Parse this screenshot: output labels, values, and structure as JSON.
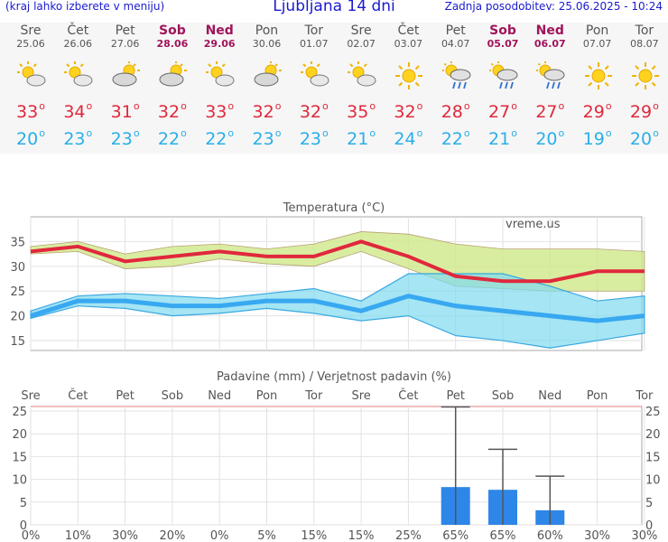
{
  "header": {
    "menu_hint": "(kraj lahko izberete v meniju)",
    "title": "Ljubljana 14 dni",
    "updated": "Zadnja posodobitev: 25.06.2025 - 10:24"
  },
  "days": [
    {
      "name": "Sre",
      "date": "25.06",
      "weekend": false,
      "icon": "sun-cloud-icon",
      "tmax": "33",
      "tmin": "20",
      "precip_prob": "0%"
    },
    {
      "name": "Čet",
      "date": "26.06",
      "weekend": false,
      "icon": "sun-cloud-icon",
      "tmax": "34",
      "tmin": "23",
      "precip_prob": "10%"
    },
    {
      "name": "Pet",
      "date": "27.06",
      "weekend": false,
      "icon": "cloud-sun-icon",
      "tmax": "31",
      "tmin": "23",
      "precip_prob": "30%"
    },
    {
      "name": "Sob",
      "date": "28.06",
      "weekend": true,
      "icon": "cloud-sun-icon",
      "tmax": "32",
      "tmin": "22",
      "precip_prob": "20%"
    },
    {
      "name": "Ned",
      "date": "29.06",
      "weekend": true,
      "icon": "sun-cloud-icon",
      "tmax": "33",
      "tmin": "22",
      "precip_prob": "0%"
    },
    {
      "name": "Pon",
      "date": "30.06",
      "weekend": false,
      "icon": "cloud-sun-icon",
      "tmax": "32",
      "tmin": "23",
      "precip_prob": "5%"
    },
    {
      "name": "Tor",
      "date": "01.07",
      "weekend": false,
      "icon": "sun-cloud-icon",
      "tmax": "32",
      "tmin": "23",
      "precip_prob": "15%"
    },
    {
      "name": "Sre",
      "date": "02.07",
      "weekend": false,
      "icon": "sun-cloud-icon",
      "tmax": "35",
      "tmin": "21",
      "precip_prob": "15%"
    },
    {
      "name": "Čet",
      "date": "03.07",
      "weekend": false,
      "icon": "sun-icon",
      "tmax": "32",
      "tmin": "24",
      "precip_prob": "25%"
    },
    {
      "name": "Pet",
      "date": "04.07",
      "weekend": false,
      "icon": "sun-rain-icon",
      "tmax": "28",
      "tmin": "22",
      "precip_prob": "65%"
    },
    {
      "name": "Sob",
      "date": "05.07",
      "weekend": true,
      "icon": "sun-rain-icon",
      "tmax": "27",
      "tmin": "21",
      "precip_prob": "65%"
    },
    {
      "name": "Ned",
      "date": "06.07",
      "weekend": true,
      "icon": "sun-rain-icon",
      "tmax": "27",
      "tmin": "20",
      "precip_prob": "60%"
    },
    {
      "name": "Pon",
      "date": "07.07",
      "weekend": false,
      "icon": "sun-icon",
      "tmax": "29",
      "tmin": "19",
      "precip_prob": "30%"
    },
    {
      "name": "Tor",
      "date": "08.07",
      "weekend": false,
      "icon": "sun-icon",
      "tmax": "29",
      "tmin": "20",
      "precip_prob": "30%"
    }
  ],
  "colors": {
    "tmax": "#e0283c",
    "tmin": "#2aaee8",
    "weekend": "#a0145a",
    "bar": "#2e86e8",
    "prob_high": "#1a1ad0",
    "prob_low": "#8ad8f5"
  },
  "chart_data": [
    {
      "type": "line",
      "title": "Temperatura (°C)",
      "watermark": "vreme.us",
      "ylim": [
        13,
        40
      ],
      "yticks": [
        15,
        20,
        25,
        30,
        35
      ],
      "series": [
        {
          "name": "tmax",
          "values": [
            33,
            34,
            31,
            32,
            33,
            32,
            32,
            35,
            32,
            28,
            27,
            27,
            29,
            29
          ],
          "band_low": [
            32.5,
            33,
            29.5,
            30,
            31.5,
            30.5,
            30,
            33,
            29.5,
            26,
            25.5,
            25,
            25,
            25
          ],
          "band_high": [
            34,
            35,
            32.5,
            34,
            34.5,
            33.5,
            34.5,
            37,
            36.5,
            34.5,
            33.5,
            33.5,
            33.5,
            33
          ]
        },
        {
          "name": "tmin",
          "values": [
            20,
            23,
            23,
            22,
            22,
            23,
            23,
            21,
            24,
            22,
            21,
            20,
            19,
            20
          ],
          "band_low": [
            19.5,
            22,
            21.5,
            20,
            20.5,
            21.5,
            20.5,
            19,
            20,
            16,
            15,
            13.5,
            15,
            16.5
          ],
          "band_high": [
            21,
            24,
            24.5,
            24,
            23.5,
            24.5,
            25.5,
            23,
            28.5,
            28.5,
            28.5,
            26,
            23,
            24
          ]
        }
      ]
    },
    {
      "type": "bar",
      "title": "Padavine (mm) / Verjetnost padavin (%)",
      "ylim": [
        0,
        26
      ],
      "yticks": [
        0,
        5,
        10,
        15,
        20,
        25
      ],
      "values": [
        0,
        0,
        0,
        0,
        0,
        0,
        0,
        0,
        0,
        8.3,
        7.7,
        3.2,
        0,
        0
      ],
      "error_high": [
        0,
        0,
        0,
        0,
        0,
        0,
        0,
        0,
        0,
        25.9,
        16.6,
        10.7,
        0,
        0
      ]
    }
  ]
}
